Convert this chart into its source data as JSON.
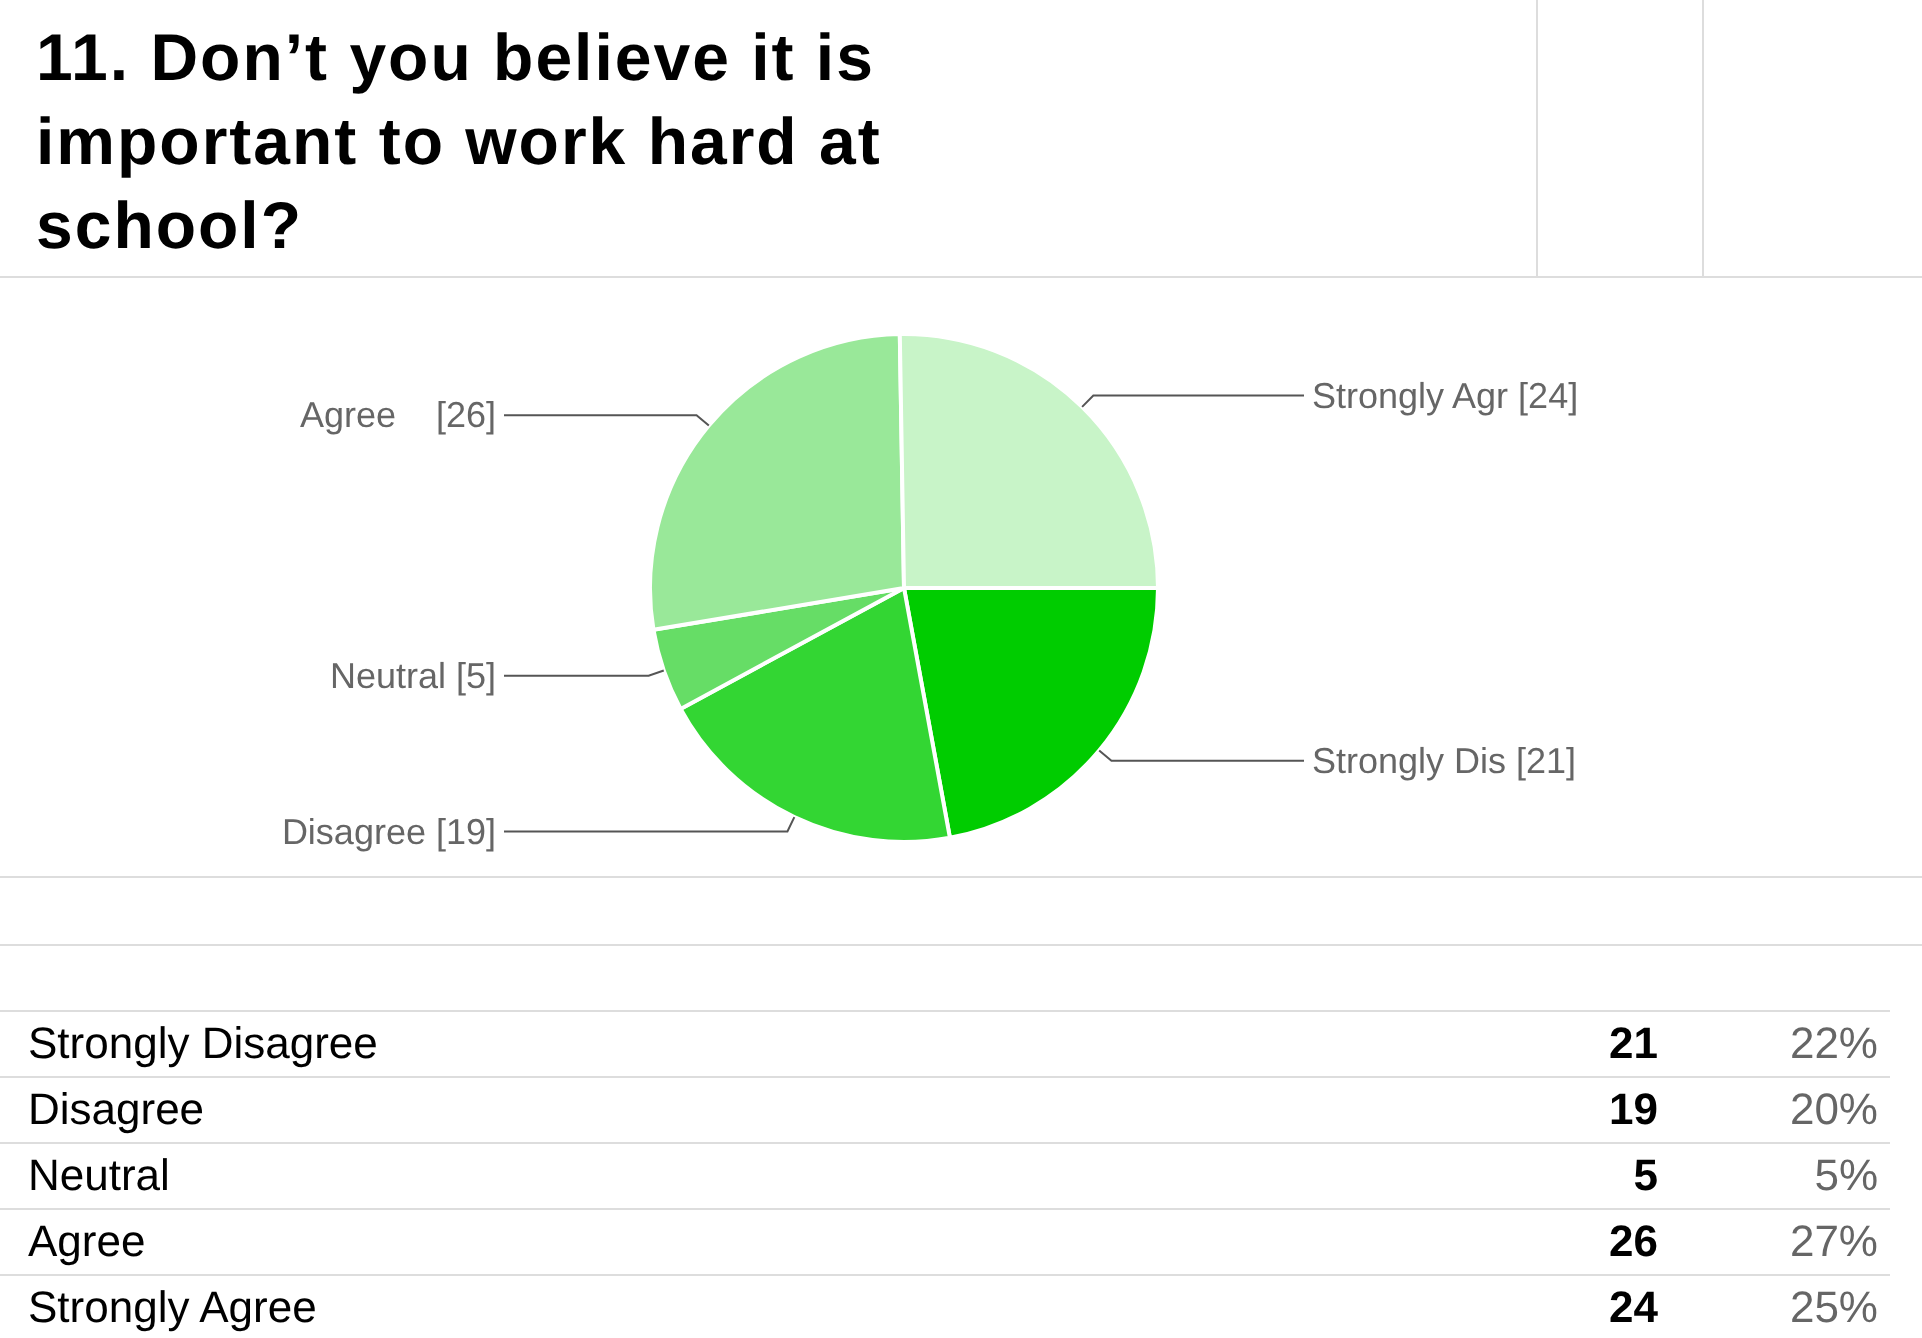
{
  "chart_data": [
    {
      "type": "pie",
      "title": "11. Don’t you believe it is important to work hard at school?",
      "categories": [
        "Strongly Dis [21]",
        "Disagree [19]",
        "Neutral [5]",
        "Agree    [26]",
        "Strongly Agr [24]"
      ],
      "values": [
        21,
        19,
        5,
        26,
        24
      ],
      "colors": [
        "#00cc00",
        "#33d633",
        "#66dd66",
        "#99e899",
        "#c8f4c8"
      ]
    },
    {
      "type": "other",
      "categories": [
        "Strongly Disagree",
        "Disagree",
        "Neutral",
        "Agree",
        "Strongly Agree"
      ],
      "series": [
        {
          "values": [
            21,
            19,
            5,
            26,
            24
          ]
        },
        {
          "values": [
            22,
            20,
            5,
            27,
            25
          ],
          "value_labels": [
            "22%",
            "20%",
            "5%",
            "27%",
            "25%"
          ]
        }
      ],
      "data_labels": true
    }
  ]
}
